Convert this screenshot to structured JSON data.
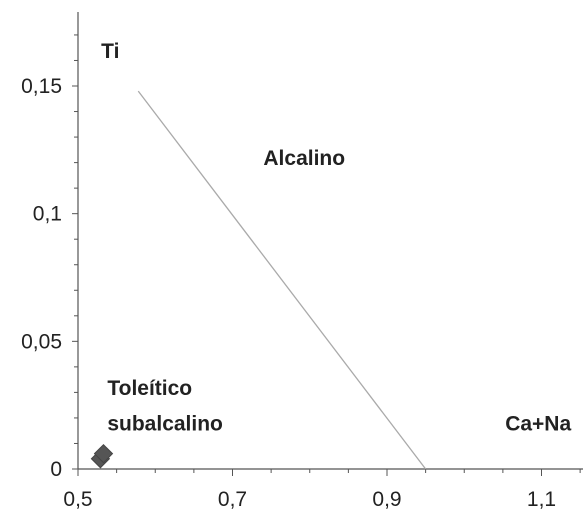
{
  "chart_data": {
    "type": "scatter",
    "title": "",
    "xlabel": "",
    "ylabel": "",
    "xlim": [
      0.5,
      1.15
    ],
    "ylim": [
      0,
      0.18
    ],
    "x_ticks": [
      0.5,
      0.7,
      0.9,
      1.1
    ],
    "x_tick_labels": [
      "0,5",
      "0,7",
      "0,9",
      "1,1"
    ],
    "y_ticks": [
      0,
      0.05,
      0.1,
      0.15
    ],
    "y_tick_labels": [
      "0",
      "0,05",
      "0,1",
      "0,15"
    ],
    "grid": false,
    "boundary_line": [
      [
        0.578,
        0.148
      ],
      [
        0.95,
        0
      ]
    ],
    "region_labels": [
      {
        "text": "Ti",
        "x": 0.53,
        "y": 0.161
      },
      {
        "text": "Alcalino",
        "x": 0.74,
        "y": 0.119
      },
      {
        "text": "Toleítico",
        "x": 0.538,
        "y": 0.029
      },
      {
        "text": "subalcalino",
        "x": 0.538,
        "y": 0.015
      },
      {
        "text": "Ca+Na",
        "x": 1.053,
        "y": 0.015
      }
    ],
    "series": [
      {
        "marker": "diamond",
        "color": "#555555",
        "points": [
          {
            "x": 0.529,
            "y": 0.004
          },
          {
            "x": 0.533,
            "y": 0.006
          }
        ]
      }
    ]
  }
}
